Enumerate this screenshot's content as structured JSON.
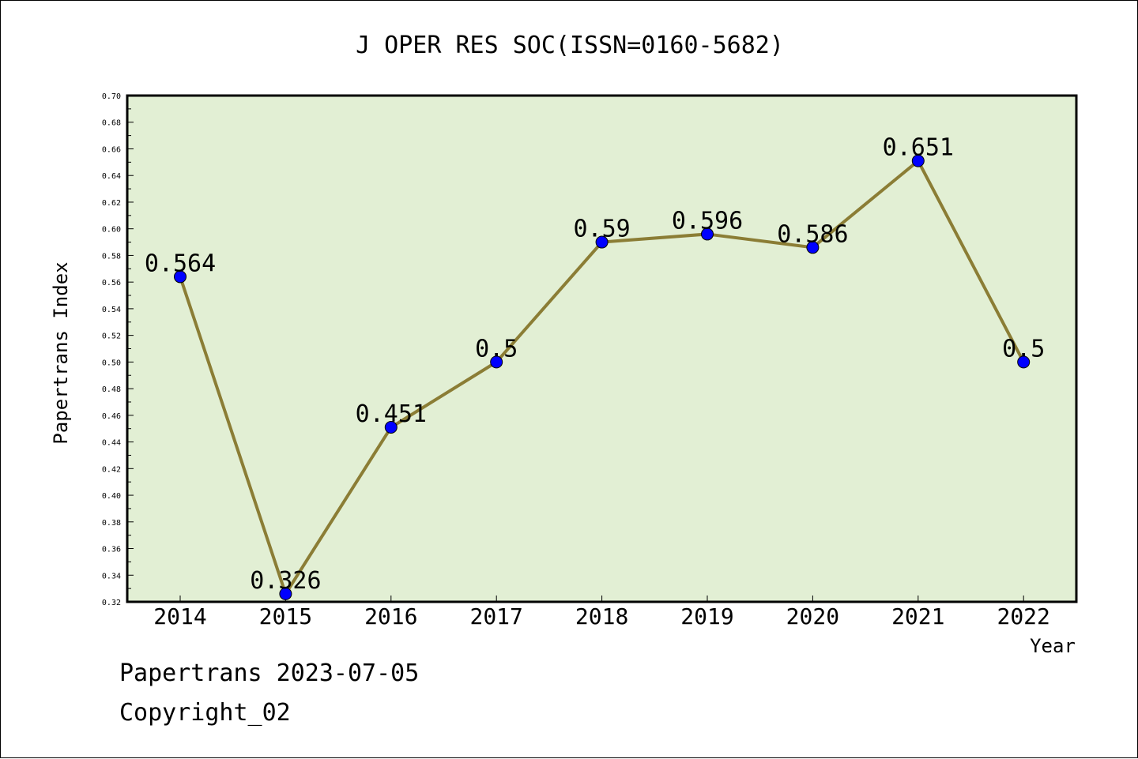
{
  "chart_data": {
    "type": "line",
    "title": "J OPER RES SOC(ISSN=0160-5682)",
    "xlabel": "Year",
    "ylabel": "Papertrans Index",
    "categories": [
      "2014",
      "2015",
      "2016",
      "2017",
      "2018",
      "2019",
      "2020",
      "2021",
      "2022"
    ],
    "values": [
      0.564,
      0.326,
      0.451,
      0.5,
      0.59,
      0.596,
      0.586,
      0.651,
      0.5
    ],
    "data_labels": [
      "0.564",
      "0.326",
      "0.451",
      "0.5",
      "0.59",
      "0.596",
      "0.586",
      "0.651",
      "0.5"
    ],
    "ylim": [
      0.32,
      0.7
    ],
    "yticks": [
      "0.32",
      "0.34",
      "0.36",
      "0.38",
      "0.40",
      "0.42",
      "0.44",
      "0.46",
      "0.48",
      "0.50",
      "0.52",
      "0.54",
      "0.56",
      "0.58",
      "0.60",
      "0.62",
      "0.64",
      "0.66",
      "0.68",
      "0.70"
    ],
    "grid": false,
    "legend": "none",
    "colors": {
      "plot_background": "#e2efd4",
      "line": "#8b7d35",
      "marker": "#0000ff"
    }
  },
  "footer": {
    "line1": "Papertrans 2023-07-05",
    "line2": "Copyright_02"
  }
}
